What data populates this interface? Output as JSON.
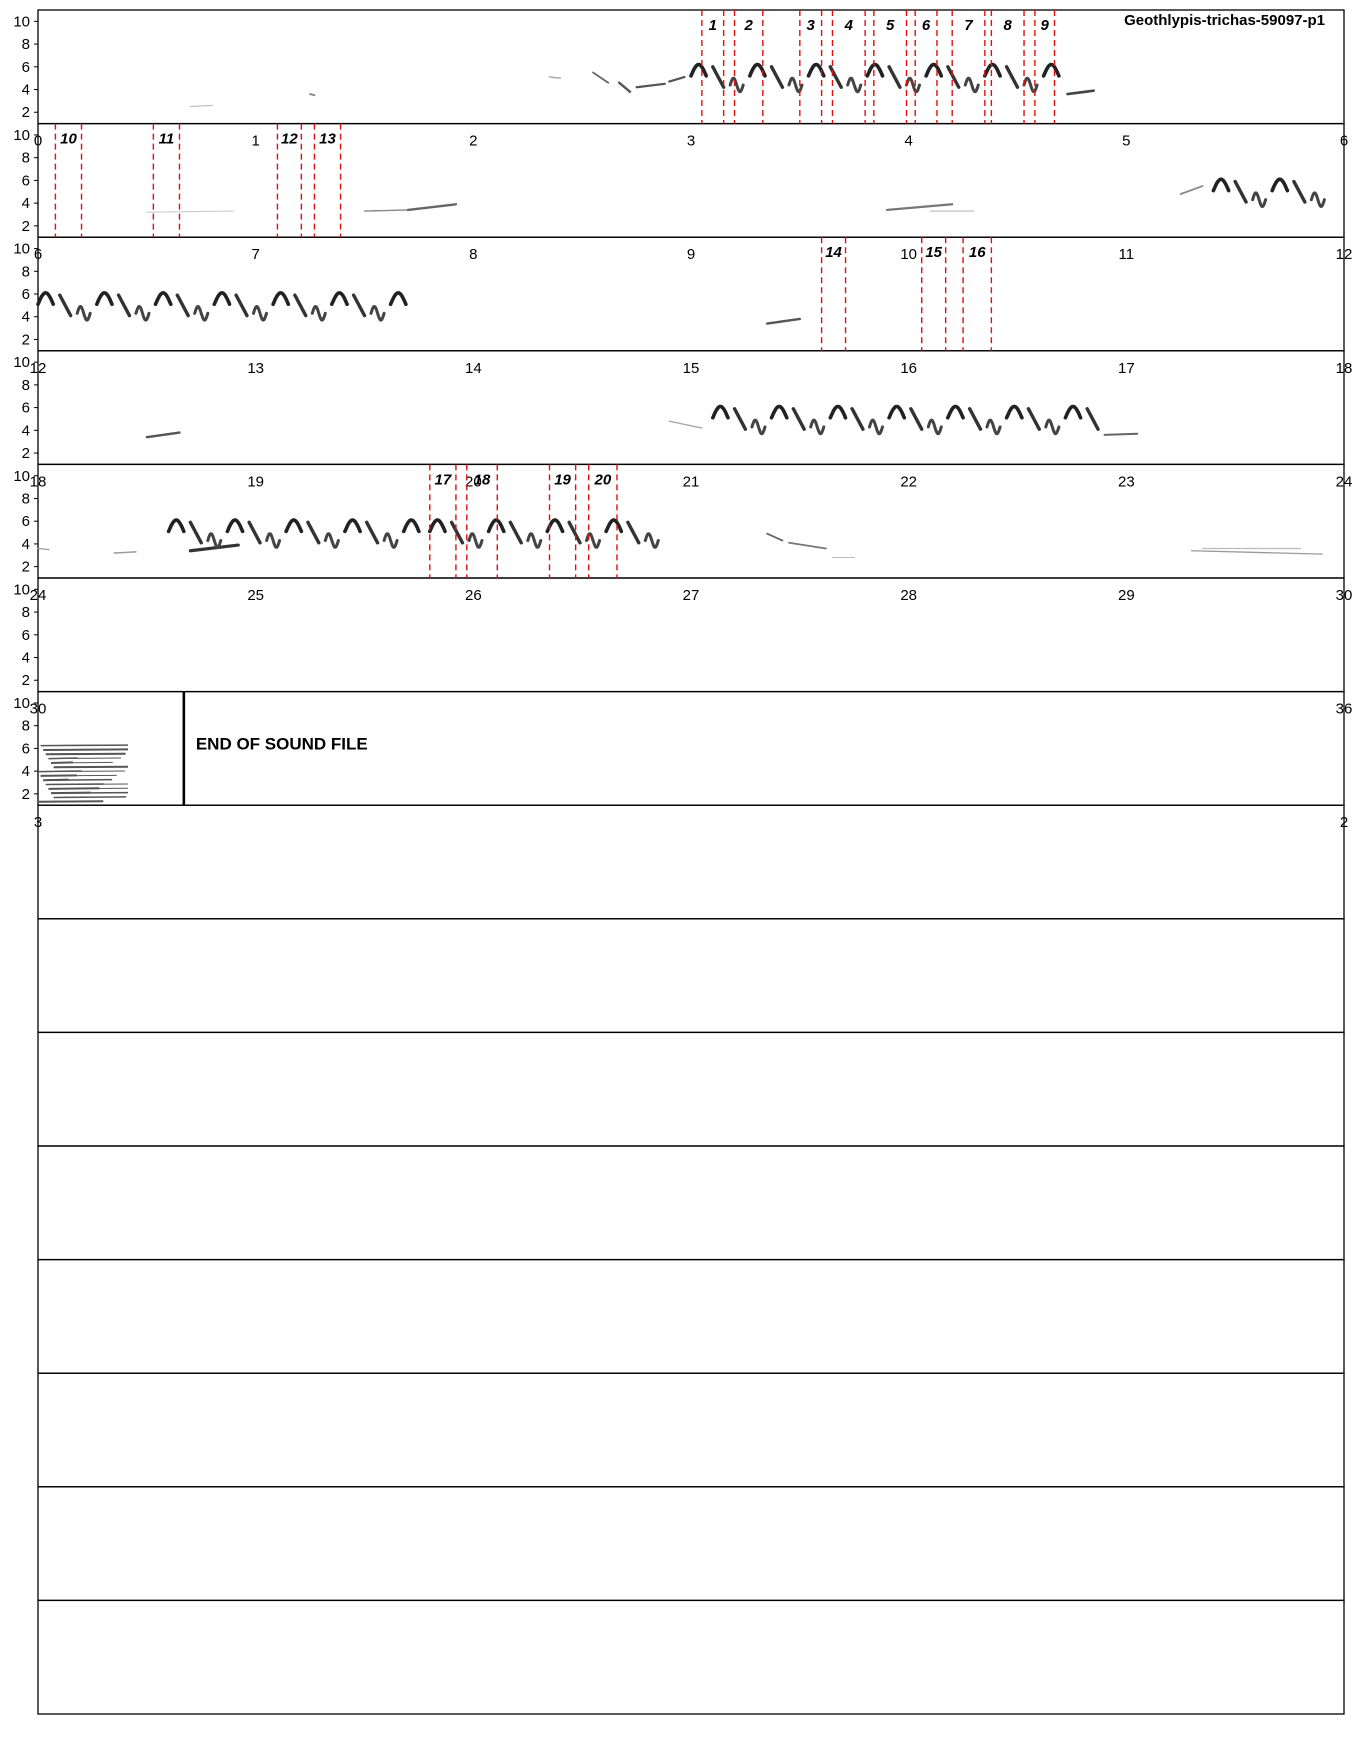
{
  "chart_data": {
    "type": "spectrogram",
    "title": "Geothlypis-trichas-59097-p1",
    "end_label": "END OF SOUND FILE",
    "ylabel": "",
    "xlabel": "",
    "y_ticks": [
      "2",
      "4",
      "6",
      "8",
      "10"
    ],
    "ylim": [
      1,
      11
    ],
    "seconds_per_row": 6,
    "rows_total": 15,
    "sound_duration": 30.67,
    "rows": [
      {
        "start": 0,
        "end": 6,
        "ticks": [
          "0",
          "1",
          "2",
          "3",
          "4",
          "5",
          "6"
        ]
      },
      {
        "start": 6,
        "end": 12,
        "ticks": [
          "6",
          "7",
          "8",
          "9",
          "10",
          "11",
          "12"
        ]
      },
      {
        "start": 12,
        "end": 18,
        "ticks": [
          "12",
          "13",
          "14",
          "15",
          "16",
          "17",
          "18"
        ]
      },
      {
        "start": 18,
        "end": 24,
        "ticks": [
          "18",
          "19",
          "20",
          "21",
          "22",
          "23",
          "24"
        ]
      },
      {
        "start": 24,
        "end": 30,
        "ticks": [
          "24",
          "25",
          "26",
          "27",
          "28",
          "29",
          "30"
        ]
      },
      {
        "start": 30,
        "end": 36,
        "ticks": [
          "30",
          "36"
        ]
      },
      {
        "start": 36,
        "end": 42,
        "ticks": [
          "3",
          "2"
        ]
      }
    ],
    "segments": [
      {
        "label": "1",
        "start": 3.05,
        "end": 3.15
      },
      {
        "label": "2",
        "start": 3.2,
        "end": 3.33
      },
      {
        "label": "3",
        "start": 3.5,
        "end": 3.6
      },
      {
        "label": "4",
        "start": 3.65,
        "end": 3.8
      },
      {
        "label": "5",
        "start": 3.84,
        "end": 3.99
      },
      {
        "label": "6",
        "start": 4.03,
        "end": 4.13
      },
      {
        "label": "7",
        "start": 4.2,
        "end": 4.35
      },
      {
        "label": "8",
        "start": 4.38,
        "end": 4.53
      },
      {
        "label": "9",
        "start": 4.58,
        "end": 4.67
      },
      {
        "label": "10",
        "start": 6.08,
        "end": 6.2
      },
      {
        "label": "11",
        "start": 6.53,
        "end": 6.65
      },
      {
        "label": "12",
        "start": 7.1,
        "end": 7.21
      },
      {
        "label": "13",
        "start": 7.27,
        "end": 7.39
      },
      {
        "label": "14",
        "start": 15.6,
        "end": 15.71
      },
      {
        "label": "15",
        "start": 16.06,
        "end": 16.17
      },
      {
        "label": "16",
        "start": 16.25,
        "end": 16.38
      },
      {
        "label": "17",
        "start": 25.8,
        "end": 25.92
      },
      {
        "label": "18",
        "start": 25.97,
        "end": 26.11
      },
      {
        "label": "19",
        "start": 26.35,
        "end": 26.47
      },
      {
        "label": "20",
        "start": 26.53,
        "end": 26.66
      }
    ]
  }
}
